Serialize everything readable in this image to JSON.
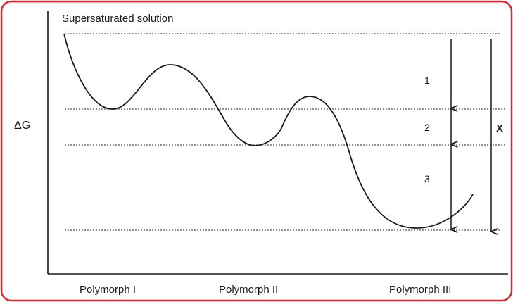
{
  "title": "Supersaturated solution",
  "y_axis_label": "ΔG",
  "steps": [
    "1",
    "2",
    "3"
  ],
  "total_label": "X",
  "categories": [
    "Polymorph I",
    "Polymorph II",
    "Polymorph III"
  ],
  "colors": {
    "border": "#e0262b",
    "line": "#1a1a1a",
    "dotted": "#555555"
  }
}
